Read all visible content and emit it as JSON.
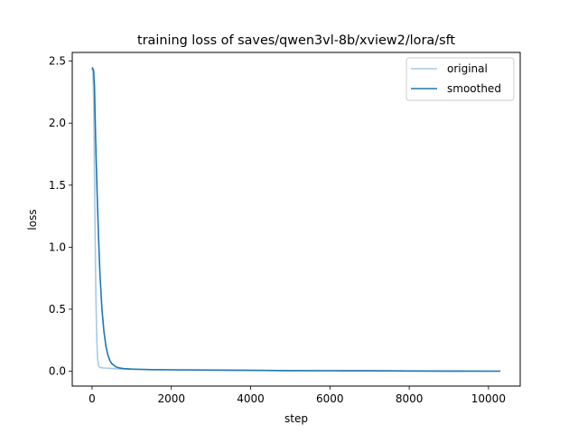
{
  "chart_data": {
    "type": "line",
    "title": "training loss of saves/qwen3vl-8b/xview2/lora/sft",
    "xlabel": "step",
    "ylabel": "loss",
    "xlim": [
      -500,
      10800
    ],
    "ylim": [
      -0.12,
      2.57
    ],
    "xticks": [
      0,
      2000,
      4000,
      6000,
      8000,
      10000
    ],
    "xtick_labels": [
      "0",
      "2000",
      "4000",
      "6000",
      "8000",
      "10000"
    ],
    "yticks": [
      0.0,
      0.5,
      1.0,
      1.5,
      2.0,
      2.5
    ],
    "ytick_labels": [
      "0.0",
      "0.5",
      "1.0",
      "1.5",
      "2.0",
      "2.5"
    ],
    "grid": false,
    "legend_position": "upper right",
    "series": [
      {
        "name": "original",
        "color": "#a6cbe3",
        "x": [
          0,
          20,
          40,
          60,
          80,
          100,
          120,
          140,
          160,
          180,
          200,
          250,
          300,
          400,
          600,
          800,
          1000,
          1500,
          2000,
          3000,
          4000,
          5000,
          6000,
          7000,
          8000,
          9000,
          10000,
          10300
        ],
        "values": [
          2.44,
          2.42,
          2.2,
          1.6,
          1.0,
          0.55,
          0.25,
          0.1,
          0.05,
          0.035,
          0.03,
          0.028,
          0.026,
          0.024,
          0.02,
          0.018,
          0.016,
          0.013,
          0.011,
          0.009,
          0.007,
          0.005,
          0.004,
          0.003,
          0.002,
          0.001,
          0.0,
          0.0
        ]
      },
      {
        "name": "smoothed",
        "color": "#1f77b4",
        "x": [
          0,
          20,
          40,
          60,
          80,
          100,
          130,
          160,
          200,
          250,
          300,
          350,
          400,
          450,
          500,
          600,
          700,
          800,
          1000,
          1200,
          1500,
          2000,
          3000,
          4000,
          5000,
          6000,
          7000,
          8000,
          9000,
          10000,
          10300
        ],
        "values": [
          2.45,
          2.44,
          2.42,
          2.3,
          2.0,
          1.75,
          1.4,
          1.1,
          0.78,
          0.5,
          0.32,
          0.2,
          0.13,
          0.085,
          0.06,
          0.035,
          0.025,
          0.021,
          0.017,
          0.015,
          0.013,
          0.011,
          0.009,
          0.007,
          0.005,
          0.004,
          0.003,
          0.002,
          0.001,
          0.0,
          0.0
        ]
      }
    ]
  }
}
